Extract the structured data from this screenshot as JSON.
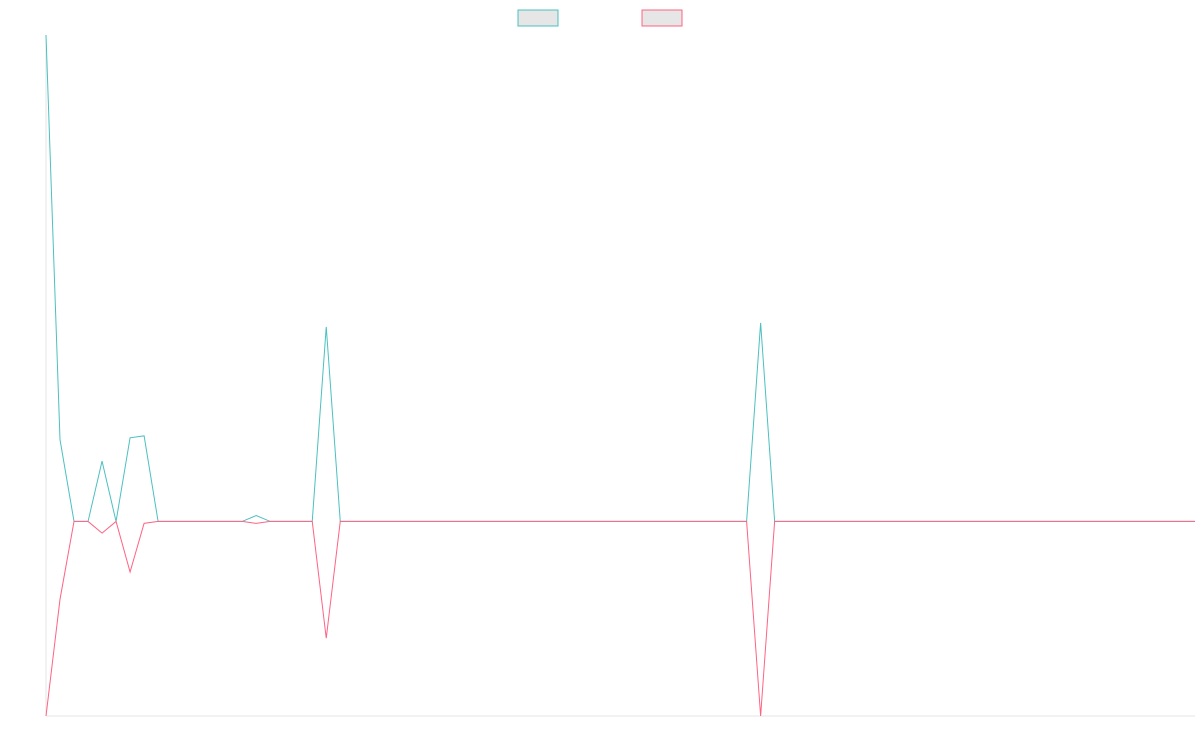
{
  "chart_data": {
    "type": "line",
    "title": "",
    "xlabel": "",
    "ylabel": "",
    "legend": "top-center",
    "grid": false,
    "x": [
      0,
      1,
      2,
      3,
      4,
      5,
      6,
      7,
      8,
      9,
      10,
      11,
      12,
      13,
      14,
      15,
      16,
      17,
      18,
      19,
      20,
      21,
      22,
      23,
      24,
      25,
      26,
      27,
      28,
      29,
      30,
      31,
      32,
      33,
      34,
      35,
      36,
      37,
      38,
      39,
      40,
      41,
      42,
      43,
      44,
      45,
      46,
      47,
      48,
      49,
      50,
      51,
      52,
      53,
      54,
      55,
      56,
      57,
      58,
      59,
      60,
      61,
      62,
      63,
      64,
      65,
      66,
      67,
      68,
      69,
      70,
      71,
      72,
      73,
      74,
      75,
      76,
      77,
      78,
      79,
      80,
      81,
      82
    ],
    "ylim": [
      -100,
      250
    ],
    "series": [
      {
        "name": "",
        "color": "#4bc0c0",
        "values": [
          250,
          42,
          0,
          0,
          31,
          0,
          43,
          44,
          0,
          0,
          0,
          0,
          0,
          0,
          0,
          3,
          0,
          0,
          0,
          0,
          100,
          0,
          0,
          0,
          0,
          0,
          0,
          0,
          0,
          0,
          0,
          0,
          0,
          0,
          0,
          0,
          0,
          0,
          0,
          0,
          0,
          0,
          0,
          0,
          0,
          0,
          0,
          0,
          0,
          0,
          0,
          102,
          0,
          0,
          0,
          0,
          0,
          0,
          0,
          0,
          0,
          0,
          0,
          0,
          0,
          0,
          0,
          0,
          0,
          0,
          0,
          0,
          0,
          0,
          0,
          0,
          0,
          0,
          0,
          0,
          0,
          0,
          0
        ]
      },
      {
        "name": "",
        "color": "#ff6384",
        "values": [
          -100,
          -40,
          0,
          0,
          -6,
          0,
          -26,
          -1,
          0,
          0,
          0,
          0,
          0,
          0,
          0,
          -1,
          0,
          0,
          0,
          0,
          -60,
          0,
          0,
          0,
          0,
          0,
          0,
          0,
          0,
          0,
          0,
          0,
          0,
          0,
          0,
          0,
          0,
          0,
          0,
          0,
          0,
          0,
          0,
          0,
          0,
          0,
          0,
          0,
          0,
          0,
          0,
          -100,
          0,
          0,
          0,
          0,
          0,
          0,
          0,
          0,
          0,
          0,
          0,
          0,
          0,
          0,
          0,
          0,
          0,
          0,
          0,
          0,
          0,
          0,
          0,
          0,
          0,
          0,
          0,
          0,
          0,
          0,
          0
        ]
      }
    ]
  }
}
